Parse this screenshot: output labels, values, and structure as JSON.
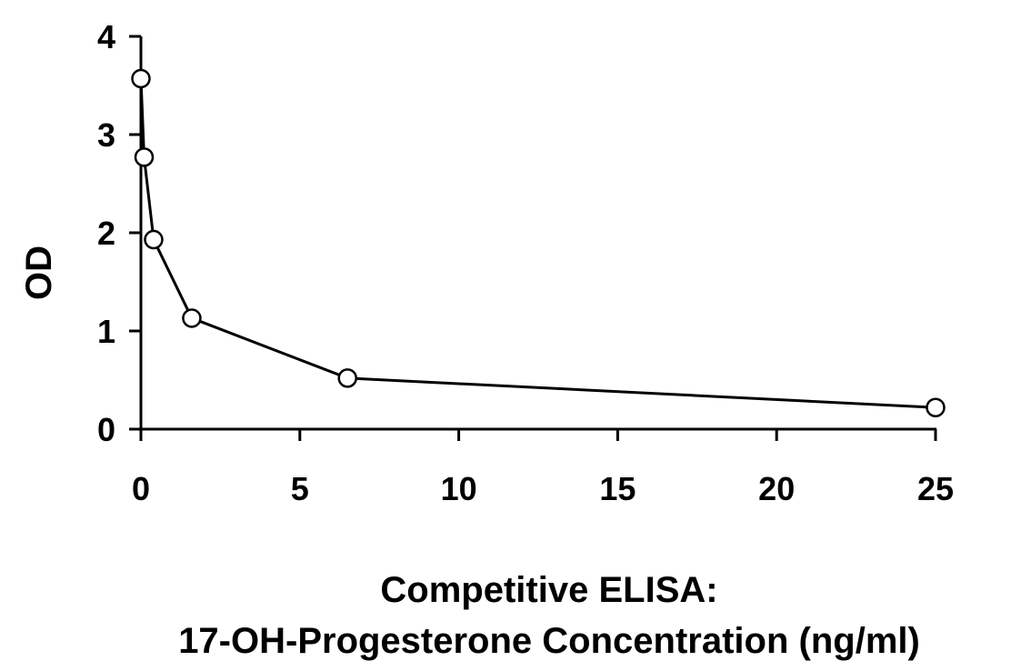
{
  "chart_data": {
    "type": "line",
    "title": "",
    "xlabel": "Competitive ELISA: 17-OH-Progesterone Concentration (ng/ml)",
    "xlabel_lines": [
      "Competitive ELISA:",
      "17-OH-Progesterone Concentration (ng/ml)"
    ],
    "ylabel": "OD",
    "xlim": [
      0,
      25
    ],
    "ylim": [
      0,
      4
    ],
    "xticks": [
      0,
      5,
      10,
      15,
      20,
      25
    ],
    "yticks": [
      0,
      1,
      2,
      3,
      4
    ],
    "xtick_labels": [
      "0",
      "5",
      "10",
      "15",
      "20",
      "25"
    ],
    "ytick_labels": [
      "0",
      "1",
      "2",
      "3",
      "4"
    ],
    "grid": false,
    "legend": "none",
    "series": [
      {
        "x": [
          0,
          0.1,
          0.4,
          1.6,
          6.5,
          25
        ],
        "y": [
          3.57,
          2.77,
          1.93,
          1.13,
          0.52,
          0.22
        ],
        "line_color": "#000000",
        "marker": "circle",
        "marker_fill": "#ffffff",
        "marker_edge": "#000000"
      }
    ]
  }
}
